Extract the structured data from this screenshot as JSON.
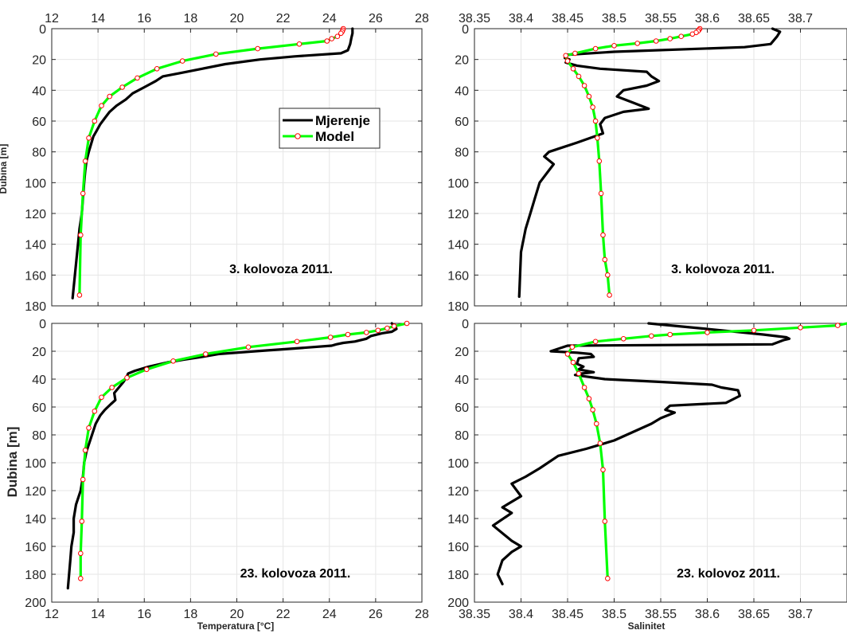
{
  "colors": {
    "measurement": "#000000",
    "model_line": "#00ff00",
    "model_marker": "#ff0000",
    "grid": "#e6e6e6",
    "axes": "#262626"
  },
  "legend": {
    "items": [
      {
        "label": "Mjerenje",
        "series": "measurement"
      },
      {
        "label": "Model",
        "series": "model"
      }
    ]
  },
  "chart_data": [
    {
      "panel": "top-left",
      "type": "line",
      "xlim": [
        12,
        28
      ],
      "ylim": [
        0,
        180
      ],
      "xticks": [
        12,
        14,
        16,
        18,
        20,
        22,
        24,
        26,
        28
      ],
      "yticks": [
        0,
        20,
        40,
        60,
        80,
        100,
        120,
        140,
        160,
        180
      ],
      "x_ticks_top": true,
      "x_ticks_bottom": false,
      "y_reversed": true,
      "grid": true,
      "xlabel": "",
      "ylabel": "Dubina [m]",
      "ylabel_size": "small",
      "annotation": "3. kolovoza 2011.",
      "legend": "upper-right",
      "series": [
        {
          "key": "measurement",
          "x": [
            25.0,
            25.0,
            24.95,
            24.9,
            24.8,
            24.5,
            22.5,
            21.0,
            19.5,
            18.5,
            17.5,
            16.8,
            16.5,
            16.0,
            15.5,
            15.2,
            14.8,
            14.5,
            14.3,
            14.1,
            13.95,
            13.8,
            13.7,
            13.6,
            13.5,
            13.45,
            13.4,
            13.35,
            13.3,
            13.2,
            13.1,
            13.0,
            12.9
          ],
          "y": [
            0,
            3,
            6,
            10,
            14,
            16,
            18,
            20,
            23,
            26,
            29,
            31,
            34,
            38,
            42,
            46,
            50,
            54,
            58,
            62,
            66,
            70,
            75,
            80,
            86,
            92,
            100,
            110,
            120,
            130,
            145,
            160,
            175
          ]
        },
        {
          "key": "model",
          "x": [
            24.6,
            24.58,
            24.55,
            24.5,
            24.35,
            24.1,
            23.9,
            22.7,
            20.9,
            19.1,
            17.65,
            16.55,
            15.7,
            15.05,
            14.5,
            14.15,
            13.85,
            13.6,
            13.45,
            13.35,
            13.25,
            13.2
          ],
          "y": [
            0,
            1,
            2,
            3,
            5,
            6.5,
            8,
            10,
            13,
            16.5,
            21,
            26,
            32,
            38,
            44,
            50,
            60,
            71,
            86,
            107,
            134,
            173
          ]
        }
      ]
    },
    {
      "panel": "top-right",
      "type": "line",
      "xlim": [
        38.35,
        38.75
      ],
      "ylim": [
        0,
        180
      ],
      "xticks": [
        38.35,
        38.4,
        38.45,
        38.5,
        38.55,
        38.6,
        38.65,
        38.7
      ],
      "yticks": [
        0,
        20,
        40,
        60,
        80,
        100,
        120,
        140,
        160,
        180
      ],
      "x_ticks_top": true,
      "x_ticks_bottom": false,
      "y_reversed": true,
      "grid": true,
      "xlabel": "",
      "ylabel": "",
      "annotation": "3. kolovoza 2011.",
      "series": [
        {
          "key": "measurement",
          "x": [
            38.67,
            38.678,
            38.675,
            38.668,
            38.64,
            38.5,
            38.448,
            38.447,
            38.452,
            38.448,
            38.46,
            38.485,
            38.535,
            38.54,
            38.548,
            38.535,
            38.51,
            38.503,
            38.52,
            38.537,
            38.51,
            38.49,
            38.485,
            38.488,
            38.46,
            38.44,
            38.43,
            38.425,
            38.435,
            38.43,
            38.42,
            38.415,
            38.41,
            38.405,
            38.4,
            38.398
          ],
          "y": [
            0,
            2,
            5,
            10,
            12,
            15,
            17,
            19,
            20,
            22,
            24,
            26,
            28,
            31,
            34,
            37,
            40,
            44,
            48,
            52,
            54,
            58,
            62,
            68,
            74,
            78,
            80,
            83,
            88,
            92,
            100,
            110,
            120,
            130,
            145,
            174
          ]
        },
        {
          "key": "model",
          "x": [
            38.592,
            38.591,
            38.59,
            38.588,
            38.584,
            38.572,
            38.56,
            38.545,
            38.525,
            38.5,
            38.48,
            38.458,
            38.448,
            38.45,
            38.456,
            38.462,
            38.468,
            38.473,
            38.477,
            38.48,
            38.482,
            38.484,
            38.486,
            38.488,
            38.49,
            38.493,
            38.495
          ],
          "y": [
            0,
            0.8,
            1.6,
            2.5,
            3.5,
            5,
            6.5,
            8,
            9.5,
            11,
            13,
            16,
            17.5,
            21,
            26,
            31,
            37,
            44,
            51,
            60,
            71,
            86,
            107,
            134,
            150,
            160,
            173
          ]
        }
      ]
    },
    {
      "panel": "bottom-left",
      "type": "line",
      "xlim": [
        12,
        28
      ],
      "ylim": [
        0,
        200
      ],
      "xticks": [
        12,
        14,
        16,
        18,
        20,
        22,
        24,
        26,
        28
      ],
      "yticks": [
        0,
        20,
        40,
        60,
        80,
        100,
        120,
        140,
        160,
        180,
        200
      ],
      "x_ticks_top": false,
      "x_ticks_bottom": true,
      "y_reversed": true,
      "grid": true,
      "xlabel": "Temperatura [°C]",
      "ylabel": "Dubina [m]",
      "ylabel_size": "large",
      "annotation": "23. kolovoza 2011.",
      "series": [
        {
          "key": "measurement",
          "x": [
            26.7,
            26.75,
            26.85,
            26.9,
            26.7,
            26.3,
            25.8,
            25.6,
            25.1,
            24.6,
            24.3,
            24.1,
            22.5,
            20.8,
            19.2,
            18.5,
            17.7,
            17.0,
            16.2,
            15.6,
            15.3,
            15.25,
            15.1,
            14.9,
            14.7,
            14.75,
            14.55,
            14.3,
            14.1,
            13.9,
            13.7,
            13.5,
            13.4,
            13.35,
            13.25,
            13.05,
            12.95,
            12.95,
            12.85,
            12.8,
            12.7
          ],
          "y": [
            0,
            1,
            2,
            4,
            6,
            7,
            9,
            11,
            13,
            14,
            15,
            16,
            18,
            20,
            22,
            24,
            26,
            28,
            31,
            34,
            36,
            38,
            42,
            46,
            50,
            55,
            58,
            62,
            66,
            72,
            82,
            92,
            100,
            110,
            120,
            130,
            140,
            150,
            160,
            170,
            190
          ]
        },
        {
          "key": "model",
          "x": [
            27.35,
            26.8,
            26.5,
            26.1,
            25.6,
            24.8,
            24.05,
            22.6,
            20.5,
            18.65,
            17.25,
            16.1,
            15.25,
            14.6,
            14.15,
            13.85,
            13.6,
            13.45,
            13.35,
            13.3,
            13.25,
            13.25
          ],
          "y": [
            0,
            2,
            3.5,
            5,
            6.5,
            8,
            10,
            13,
            17,
            22,
            27,
            33,
            39,
            46,
            53,
            63,
            75,
            91,
            112,
            142,
            165,
            183
          ]
        }
      ]
    },
    {
      "panel": "bottom-right",
      "type": "line",
      "xlim": [
        38.35,
        38.75
      ],
      "ylim": [
        0,
        200
      ],
      "xticks": [
        38.35,
        38.4,
        38.45,
        38.5,
        38.55,
        38.6,
        38.65,
        38.7
      ],
      "yticks": [
        0,
        20,
        40,
        60,
        80,
        100,
        120,
        140,
        160,
        180,
        200
      ],
      "x_ticks_top": false,
      "x_ticks_bottom": true,
      "y_reversed": true,
      "grid": true,
      "xlabel": "Salinitet",
      "ylabel": "",
      "annotation": "23. kolovoz 2011.",
      "series": [
        {
          "key": "measurement",
          "x": [
            38.537,
            38.6,
            38.66,
            38.685,
            38.688,
            38.682,
            38.67,
            38.45,
            38.432,
            38.46,
            38.475,
            38.478,
            38.462,
            38.46,
            38.467,
            38.462,
            38.478,
            38.465,
            38.458,
            38.49,
            38.55,
            38.605,
            38.615,
            38.633,
            38.635,
            38.62,
            38.56,
            38.555,
            38.565,
            38.55,
            38.54,
            38.52,
            38.5,
            38.47,
            38.44,
            38.42,
            38.405,
            38.39,
            38.4,
            38.38,
            38.39,
            38.37,
            38.39,
            38.4,
            38.39,
            38.38,
            38.375,
            38.38
          ],
          "y": [
            0,
            4,
            8,
            10,
            11,
            12,
            15,
            16,
            20,
            21,
            22,
            24,
            25,
            29,
            31,
            33,
            35,
            36,
            37,
            40,
            42,
            44,
            46,
            48,
            52,
            57,
            59,
            62,
            64,
            68,
            72,
            78,
            84,
            90,
            95,
            104,
            110,
            115,
            124,
            132,
            136,
            145,
            156,
            160,
            164,
            170,
            180,
            187
          ]
        },
        {
          "key": "model",
          "x": [
            38.78,
            38.74,
            38.7,
            38.65,
            38.6,
            38.56,
            38.54,
            38.51,
            38.48,
            38.455,
            38.45,
            38.456,
            38.462,
            38.468,
            38.473,
            38.477,
            38.481,
            38.485,
            38.488,
            38.49,
            38.493
          ],
          "y": [
            0,
            1.5,
            3,
            5,
            6.5,
            8,
            9,
            11,
            13,
            17,
            22,
            28,
            36,
            46,
            54,
            62,
            72,
            86,
            105,
            142,
            183
          ]
        }
      ]
    }
  ]
}
